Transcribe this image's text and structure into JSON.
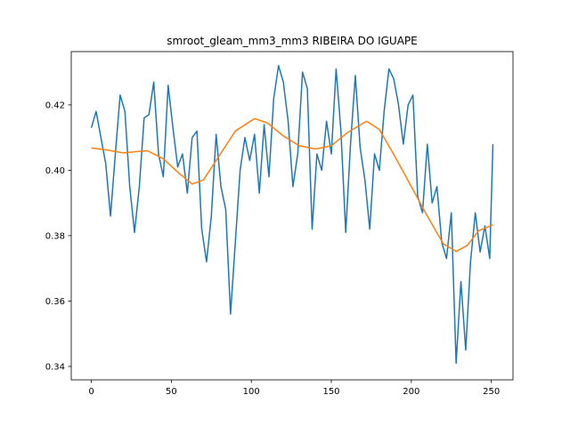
{
  "chart_data": {
    "type": "line",
    "title": "smroot_gleam_mm3_mm3 RIBEIRA DO IGUAPE",
    "series": [
      {
        "color": "#1f77b4",
        "x": [
          0,
          3,
          6,
          9,
          12,
          15,
          18,
          21,
          24,
          27,
          30,
          33,
          36,
          39,
          42,
          45,
          48,
          51,
          54,
          57,
          60,
          63,
          66,
          69,
          72,
          75,
          78,
          81,
          84,
          87,
          90,
          93,
          96,
          99,
          102,
          105,
          108,
          111,
          114,
          117,
          120,
          123,
          126,
          129,
          132,
          135,
          138,
          141,
          144,
          147,
          150,
          153,
          156,
          159,
          162,
          165,
          168,
          171,
          174,
          177,
          180,
          183,
          186,
          189,
          192,
          195,
          198,
          201,
          204,
          207,
          210,
          213,
          216,
          219,
          222,
          225,
          228,
          231,
          234,
          237,
          240,
          243,
          246,
          249,
          251
        ],
        "values": [
          0.413,
          0.418,
          0.41,
          0.402,
          0.386,
          0.405,
          0.423,
          0.418,
          0.395,
          0.381,
          0.395,
          0.416,
          0.417,
          0.427,
          0.405,
          0.398,
          0.426,
          0.413,
          0.401,
          0.405,
          0.393,
          0.41,
          0.412,
          0.382,
          0.372,
          0.386,
          0.411,
          0.395,
          0.388,
          0.356,
          0.378,
          0.4,
          0.41,
          0.403,
          0.411,
          0.393,
          0.414,
          0.398,
          0.422,
          0.432,
          0.427,
          0.415,
          0.395,
          0.405,
          0.43,
          0.425,
          0.382,
          0.405,
          0.4,
          0.415,
          0.405,
          0.431,
          0.412,
          0.381,
          0.408,
          0.429,
          0.407,
          0.397,
          0.382,
          0.405,
          0.4,
          0.418,
          0.431,
          0.428,
          0.42,
          0.408,
          0.42,
          0.423,
          0.392,
          0.387,
          0.408,
          0.39,
          0.395,
          0.378,
          0.373,
          0.387,
          0.341,
          0.366,
          0.345,
          0.372,
          0.387,
          0.375,
          0.383,
          0.373,
          0.408
        ]
      },
      {
        "color": "#ff7f0e",
        "x": [
          0,
          10,
          20,
          30,
          35,
          45,
          55,
          63,
          70,
          80,
          90,
          102,
          110,
          120,
          130,
          140,
          150,
          160,
          172,
          180,
          190,
          200,
          210,
          220,
          228,
          235,
          242,
          251
        ],
        "values": [
          0.4068,
          0.4062,
          0.4053,
          0.4058,
          0.406,
          0.4035,
          0.399,
          0.3958,
          0.397,
          0.4045,
          0.412,
          0.4158,
          0.4145,
          0.4105,
          0.4075,
          0.4065,
          0.4075,
          0.4115,
          0.415,
          0.4125,
          0.404,
          0.395,
          0.386,
          0.3775,
          0.3752,
          0.377,
          0.3815,
          0.3833
        ]
      }
    ],
    "xlim": [
      -12.55,
      263.55
    ],
    "xticks": [
      0,
      50,
      100,
      150,
      200,
      250
    ],
    "ylim": [
      0.3359,
      0.4363
    ],
    "yticks": [
      0.34,
      0.36,
      0.38,
      {
        "value": 0.4,
        "label": "0.40"
      },
      0.42
    ]
  }
}
